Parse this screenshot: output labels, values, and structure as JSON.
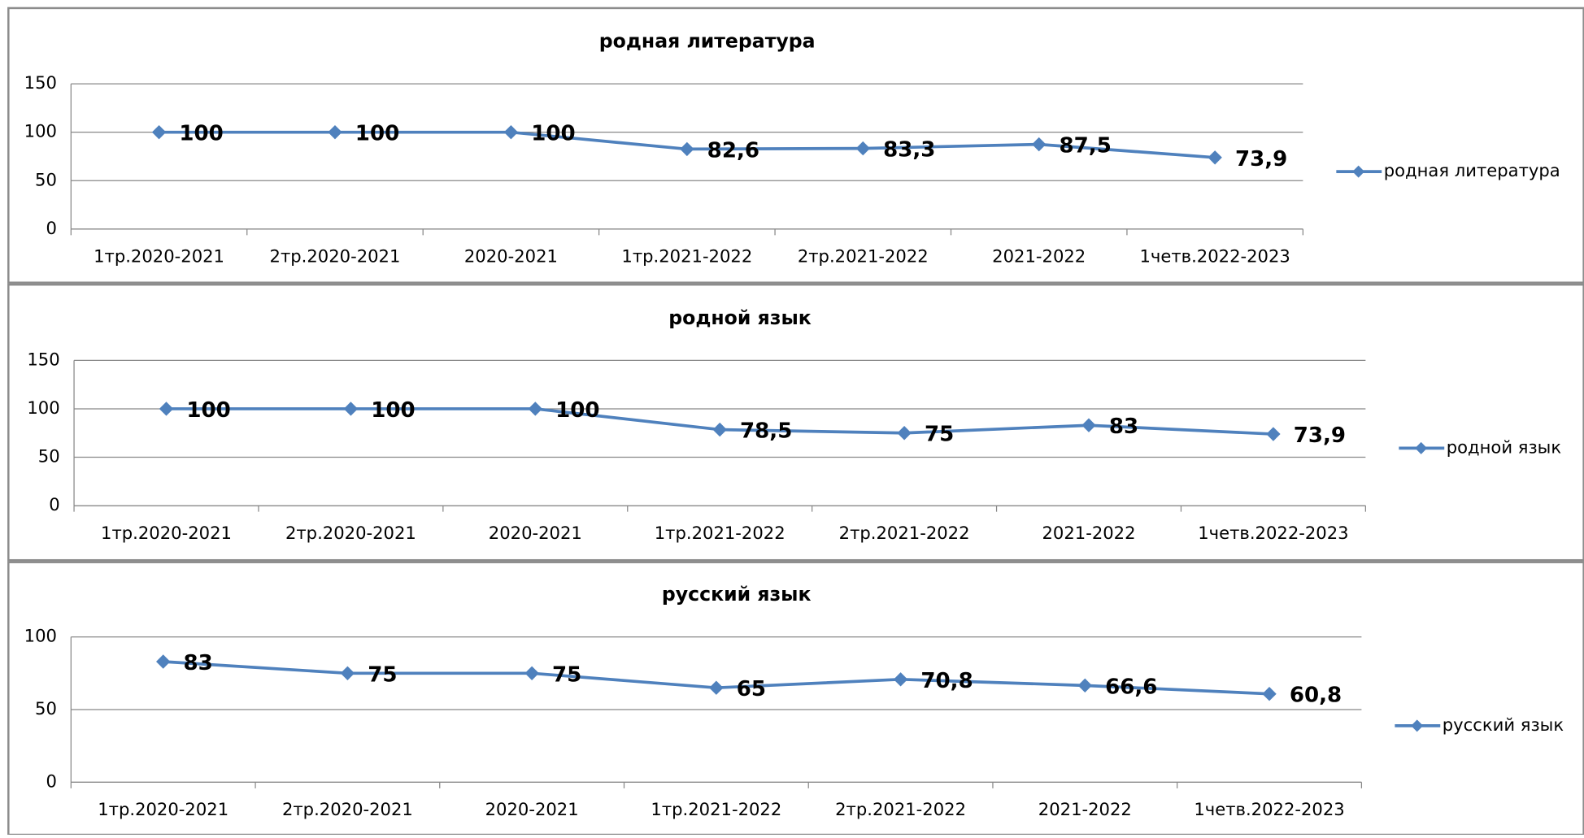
{
  "chart_data": [
    {
      "type": "line",
      "title": "родная литература",
      "categories": [
        "1тр.2020-2021",
        "2тр.2020-2021",
        "2020-2021",
        "1тр.2021-2022",
        "2тр.2021-2022",
        "2021-2022",
        "1четв.2022-2023"
      ],
      "series": [
        {
          "name": "родная литература",
          "color": "#4f81bd",
          "values": [
            100,
            100,
            100,
            82.6,
            83.3,
            87.5,
            73.9
          ],
          "value_labels": [
            "100",
            "100",
            "100",
            "82,6",
            "83,3",
            "87,5",
            "73,9"
          ]
        }
      ],
      "ylim": [
        0,
        150
      ],
      "yticks": [
        0,
        50,
        100,
        150
      ],
      "grid": true,
      "legend": "right"
    },
    {
      "type": "line",
      "title": "родной язык",
      "categories": [
        "1тр.2020-2021",
        "2тр.2020-2021",
        "2020-2021",
        "1тр.2021-2022",
        "2тр.2021-2022",
        "2021-2022",
        "1четв.2022-2023"
      ],
      "series": [
        {
          "name": "родной язык",
          "color": "#4f81bd",
          "values": [
            100,
            100,
            100,
            78.5,
            75,
            83,
            73.9
          ],
          "value_labels": [
            "100",
            "100",
            "100",
            "78,5",
            "75",
            "83",
            "73,9"
          ]
        }
      ],
      "ylim": [
        0,
        150
      ],
      "yticks": [
        0,
        50,
        100,
        150
      ],
      "grid": true,
      "legend": "right"
    },
    {
      "type": "line",
      "title": "русский язык",
      "categories": [
        "1тр.2020-2021",
        "2тр.2020-2021",
        "2020-2021",
        "1тр.2021-2022",
        "2тр.2021-2022",
        "2021-2022",
        "1четв.2022-2023"
      ],
      "series": [
        {
          "name": "русский язык",
          "color": "#4f81bd",
          "values": [
            83,
            75,
            75,
            65,
            70.8,
            66.6,
            60.8
          ],
          "value_labels": [
            "83",
            "75",
            "75",
            "65",
            "70,8",
            "66,6",
            "60,8"
          ]
        }
      ],
      "ylim": [
        0,
        100
      ],
      "yticks": [
        0,
        50,
        100
      ],
      "grid": true,
      "legend": "right"
    }
  ]
}
